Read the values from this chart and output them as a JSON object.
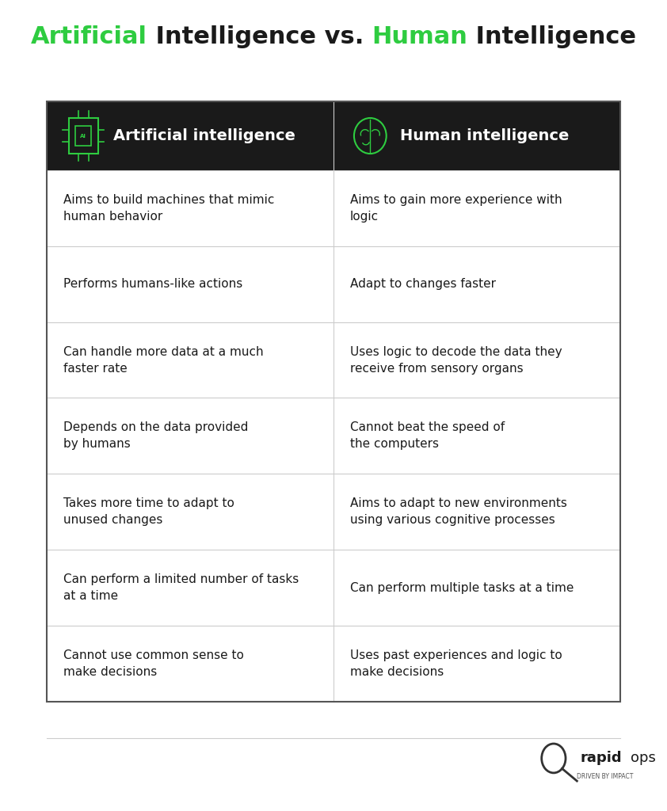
{
  "title_parts": [
    {
      "text": "Artificial",
      "color": "#2ecc40",
      "bold": true
    },
    {
      "text": " Intelligence vs. ",
      "color": "#1a1a1a",
      "bold": true
    },
    {
      "text": "Human",
      "color": "#2ecc40",
      "bold": true
    },
    {
      "text": " Intelligence",
      "color": "#1a1a1a",
      "bold": true
    }
  ],
  "header_bg": "#1a1a1a",
  "header_text_color": "#ffffff",
  "header_icon_color": "#2ecc40",
  "col1_header": "Artificial intelligence",
  "col2_header": "Human intelligence",
  "row_data": [
    [
      "Aims to build machines that mimic\nhuman behavior",
      "Aims to gain more experience with\nlogic"
    ],
    [
      "Performs humans-like actions",
      "Adapt to changes faster"
    ],
    [
      "Can handle more data at a much\nfaster rate",
      "Uses logic to decode the data they\nreceive from sensory organs"
    ],
    [
      "Depends on the data provided\nby humans",
      "Cannot beat the speed of\nthe computers"
    ],
    [
      "Takes more time to adapt to\nunused changes",
      "Aims to adapt to new environments\nusing various cognitive processes"
    ],
    [
      "Can perform a limited number of tasks\nat a time",
      "Can perform multiple tasks at a time"
    ],
    [
      "Cannot use common sense to\nmake decisions",
      "Uses past experiences and logic to\nmake decisions"
    ]
  ],
  "cell_bg": "#ffffff",
  "cell_text_color": "#1a1a1a",
  "grid_color": "#cccccc",
  "table_border_color": "#555555",
  "bg_color": "#ffffff",
  "font_size_title": 22,
  "font_size_header": 14,
  "font_size_cell": 11,
  "logo_text_rapid": "rapid",
  "logo_text_ops": "ops",
  "logo_sub": "DRIVEN BY IMPACT"
}
